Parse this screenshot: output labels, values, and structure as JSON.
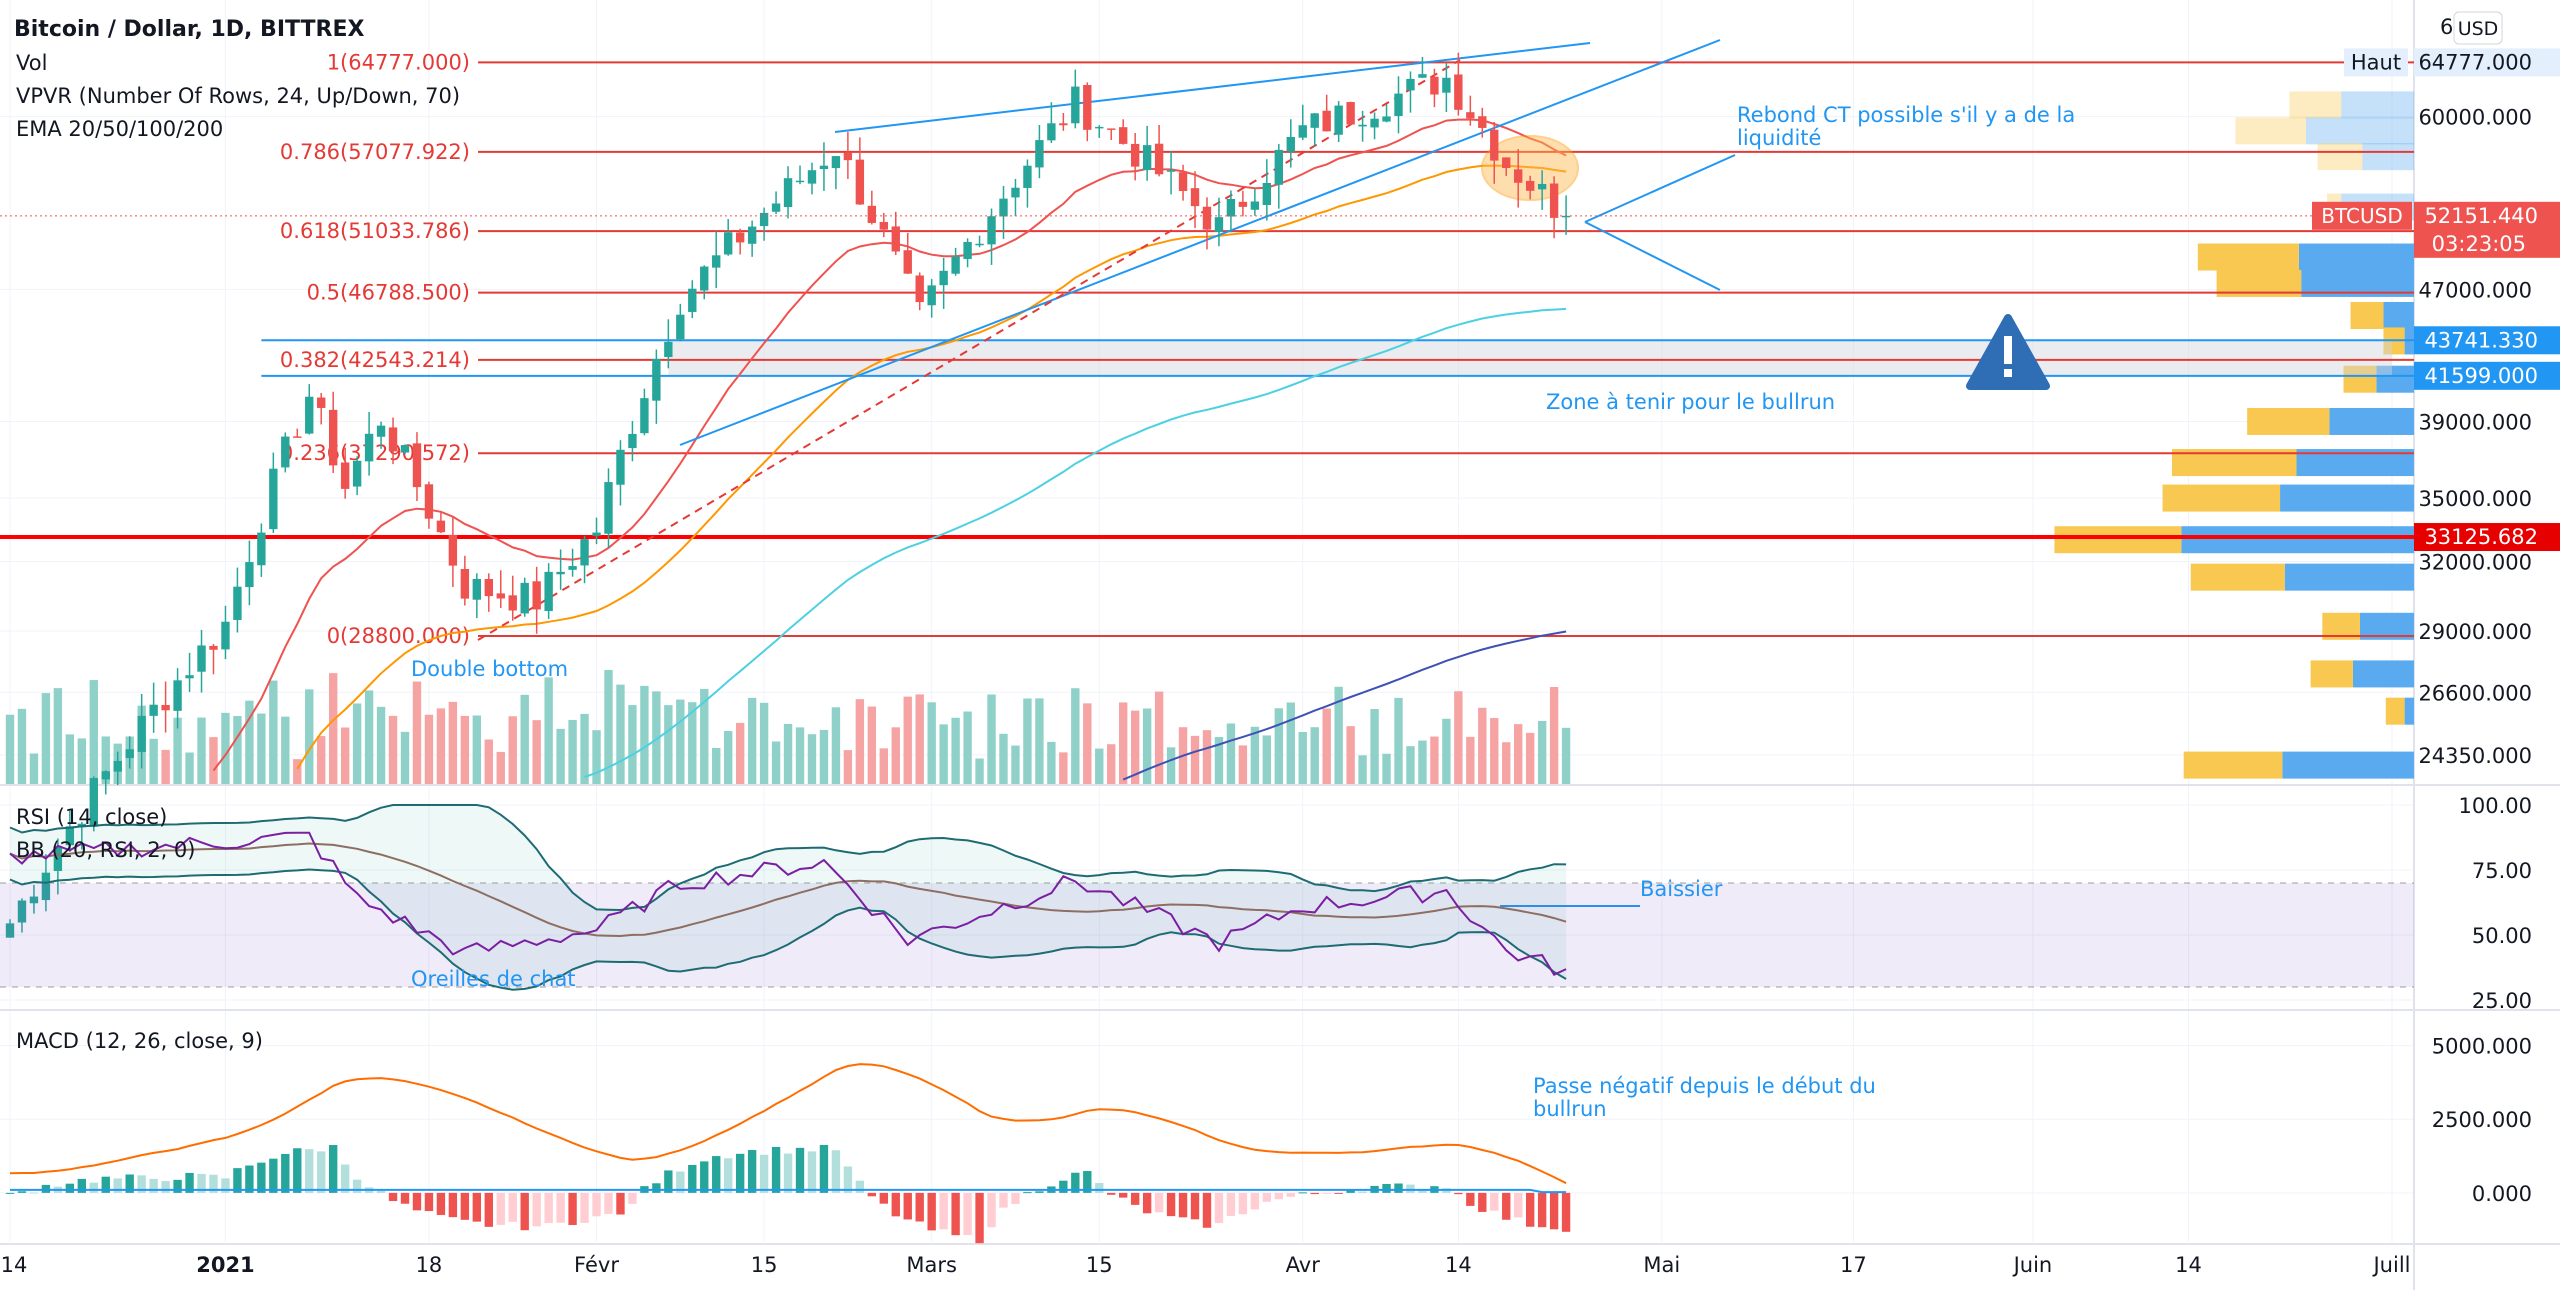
{
  "header": {
    "title": "Bitcoin / Dollar, 1D, BITTREX",
    "currency_button": "USD",
    "indicators": [
      "Vol",
      "VPVR (Number Of Rows, 24, Up/Down, 70)",
      "EMA 20/50/100/200"
    ]
  },
  "colors": {
    "up": "#26a69a",
    "down": "#ef5350",
    "fib": "#e53935",
    "annotation": "#2196f3",
    "ema20": "#ef5350",
    "ema50": "#ff9800",
    "ema100": "#4dd0e1",
    "ema200": "#3f51b5",
    "rsi": "#7b1fa2",
    "macd": "#2196f3",
    "signal": "#ff6d00",
    "vp_up": "#5aaaef",
    "vp_down": "#f8c850"
  },
  "chart_data": [
    {
      "type": "candlestick",
      "title": "Bitcoin / Dollar, 1D, BITTREX",
      "y_scale": "log",
      "y_ticks": [
        "60000.000",
        "47000.000",
        "39000.000",
        "35000.000",
        "32000.000",
        "29000.000",
        "26600.000",
        "24350.000"
      ],
      "y_tick_values": [
        60000,
        47000,
        39000,
        35000,
        32000,
        29000,
        26600,
        24350
      ],
      "y_range": [
        23500,
        68000
      ],
      "x_tick_labels": [
        "14",
        "2021",
        "18",
        "Févr",
        "15",
        "Mars",
        "15",
        "Avr",
        "14",
        "Mai",
        "17",
        "Juin",
        "14",
        "Juill"
      ],
      "x_tick_dates": [
        "2020-12-14",
        "2021-01-01",
        "2021-01-18",
        "2021-02-01",
        "2021-02-15",
        "2021-03-01",
        "2021-03-15",
        "2021-04-01",
        "2021-04-14",
        "2021-05-01",
        "2021-05-17",
        "2021-06-01",
        "2021-06-14",
        "2021-07-01"
      ],
      "x_range": [
        "2020-12-14",
        "2021-07-01"
      ],
      "last_date": "2021-04-23",
      "ohlc_anchors": [
        {
          "date": "2020-12-14",
          "close": 19200
        },
        {
          "date": "2021-01-01",
          "close": 29300
        },
        {
          "date": "2021-01-08",
          "close": 40500
        },
        {
          "date": "2021-01-11",
          "close": 35600
        },
        {
          "date": "2021-01-14",
          "close": 39200
        },
        {
          "date": "2021-01-21",
          "close": 30900
        },
        {
          "date": "2021-01-27",
          "close": 30300
        },
        {
          "date": "2021-02-01",
          "close": 33500
        },
        {
          "date": "2021-02-08",
          "close": 46400
        },
        {
          "date": "2021-02-21",
          "close": 57500
        },
        {
          "date": "2021-02-28",
          "close": 45200
        },
        {
          "date": "2021-03-13",
          "close": 61200
        },
        {
          "date": "2021-03-25",
          "close": 51300
        },
        {
          "date": "2021-04-01",
          "close": 58800
        },
        {
          "date": "2021-04-13",
          "close": 63400
        },
        {
          "date": "2021-04-18",
          "close": 56200
        },
        {
          "date": "2021-04-23",
          "close": 52151
        }
      ],
      "fib_levels": [
        {
          "label": "1(64777.000)",
          "value": 64777
        },
        {
          "label": "0.786(57077.922)",
          "value": 57077.922
        },
        {
          "label": "0.618(51033.786)",
          "value": 51033.786
        },
        {
          "label": "0.5(46788.500)",
          "value": 46788.5
        },
        {
          "label": "0.382(42543.214)",
          "value": 42543.214
        },
        {
          "label": "0.236(37290.572)",
          "value": 37290.572
        },
        {
          "label": "0(28800.000)",
          "value": 28800
        }
      ],
      "price_badges": [
        {
          "label": "Haut",
          "value": "64777.000",
          "at": 64777,
          "style": "light"
        },
        {
          "label": "BTCUSD",
          "value": "52151.440",
          "countdown": "03:23:05",
          "at": 52151.44,
          "style": "red"
        },
        {
          "value": "43741.330",
          "at": 43741.33,
          "style": "blue"
        },
        {
          "value": "41599.000",
          "at": 41599,
          "style": "blue"
        },
        {
          "value": "33125.682",
          "at": 33125.682,
          "style": "darkred"
        }
      ],
      "zone": {
        "from": 41599,
        "to": 43741.33,
        "label": "Zone à tenir pour le bullrun"
      },
      "horizontal_line": 33125.682,
      "volume_profile": [
        {
          "price": 61000,
          "up": 0.22,
          "down": 0.31
        },
        {
          "price": 58800,
          "up": 0.3,
          "down": 0.46
        },
        {
          "price": 56700,
          "up": 0.19,
          "down": 0.22
        },
        {
          "price": 52800,
          "up": 0.06,
          "down": 0.31
        },
        {
          "price": 49200,
          "up": 0.43,
          "down": 0.49
        },
        {
          "price": 47400,
          "up": 0.36,
          "down": 0.48
        },
        {
          "price": 45300,
          "up": 0.14,
          "down": 0.13
        },
        {
          "price": 43700,
          "up": 0.09,
          "down": 0.04
        },
        {
          "price": 41400,
          "up": 0.14,
          "down": 0.16
        },
        {
          "price": 39000,
          "up": 0.35,
          "down": 0.36
        },
        {
          "price": 36800,
          "up": 0.53,
          "down": 0.5
        },
        {
          "price": 35000,
          "up": 0.5,
          "down": 0.57
        },
        {
          "price": 33000,
          "up": 0.54,
          "down": 0.99
        },
        {
          "price": 31300,
          "up": 0.4,
          "down": 0.55
        },
        {
          "price": 29200,
          "up": 0.16,
          "down": 0.23
        },
        {
          "price": 27300,
          "up": 0.18,
          "down": 0.26
        },
        {
          "price": 25900,
          "up": 0.08,
          "down": 0.04
        },
        {
          "price": 24000,
          "up": 0.42,
          "down": 0.56
        }
      ],
      "annotations": {
        "double_bottom": "Double bottom",
        "rebound": [
          "Rebond CT possible s'il y a de la",
          "liquidité"
        ]
      }
    },
    {
      "type": "line",
      "title": "RSI (14, close)",
      "subtitle": "BB (20, RSI, 2, 0)",
      "y_ticks": [
        "100.00",
        "75.00",
        "50.00",
        "25.00"
      ],
      "y_tick_values": [
        100,
        75,
        50,
        25
      ],
      "y_range": [
        25,
        100
      ],
      "band": [
        30,
        70
      ],
      "rsi_anchors": [
        {
          "date": "2020-12-14",
          "value": 80
        },
        {
          "date": "2021-01-08",
          "value": 88
        },
        {
          "date": "2021-01-12",
          "value": 64
        },
        {
          "date": "2021-01-21",
          "value": 43
        },
        {
          "date": "2021-02-01",
          "value": 52
        },
        {
          "date": "2021-02-08",
          "value": 70
        },
        {
          "date": "2021-02-20",
          "value": 78
        },
        {
          "date": "2021-02-27",
          "value": 48
        },
        {
          "date": "2021-03-13",
          "value": 71
        },
        {
          "date": "2021-03-25",
          "value": 47
        },
        {
          "date": "2021-04-01",
          "value": 61
        },
        {
          "date": "2021-04-13",
          "value": 67
        },
        {
          "date": "2021-04-18",
          "value": 44
        },
        {
          "date": "2021-04-23",
          "value": 36
        }
      ],
      "annotations": {
        "bearish": "Baissier",
        "cat_ears": "Oreilles de chat"
      }
    },
    {
      "type": "line",
      "title": "MACD (12, 26, close, 9)",
      "y_ticks": [
        "5000.000",
        "2500.000",
        "0.000"
      ],
      "y_tick_values": [
        5000,
        2500,
        0
      ],
      "y_range": [
        -1600,
        5700
      ],
      "macd_anchors": [
        {
          "date": "2020-12-14",
          "value": 600
        },
        {
          "date": "2021-01-01",
          "value": 2200
        },
        {
          "date": "2021-01-10",
          "value": 4600
        },
        {
          "date": "2021-01-28",
          "value": 1300
        },
        {
          "date": "2021-02-03",
          "value": 700
        },
        {
          "date": "2021-02-10",
          "value": 2500
        },
        {
          "date": "2021-02-21",
          "value": 5100
        },
        {
          "date": "2021-03-05",
          "value": 1800
        },
        {
          "date": "2021-03-14",
          "value": 3200
        },
        {
          "date": "2021-03-25",
          "value": 1100
        },
        {
          "date": "2021-04-01",
          "value": 1300
        },
        {
          "date": "2021-04-13",
          "value": 1800
        },
        {
          "date": "2021-04-23",
          "value": -400
        }
      ],
      "annotations": {
        "negative": [
          "Passe négatif depuis le début du",
          "bullrun"
        ]
      }
    }
  ]
}
